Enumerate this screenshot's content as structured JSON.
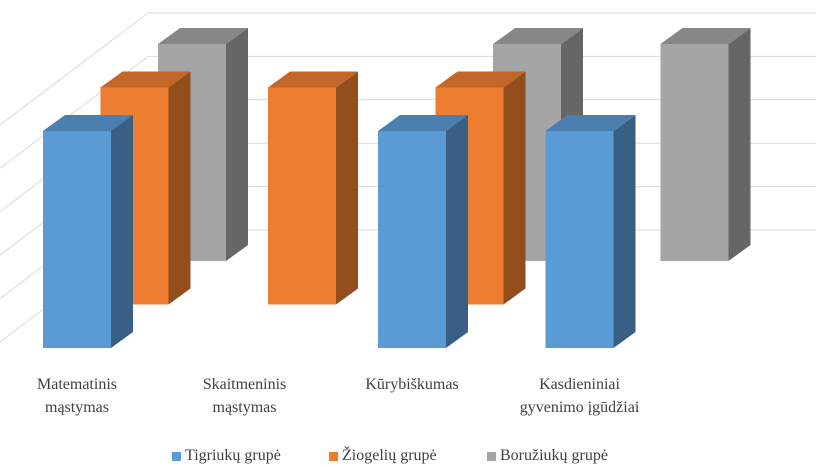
{
  "chart_data": {
    "type": "bar3d",
    "categories": [
      "Matematinis mąstymas",
      "Skaitmeninis mąstymas",
      "Kūrybiškumas",
      "Kasdieniniai gyvenimo įgūdžiai"
    ],
    "series": [
      {
        "name": "Tigriukų grupė",
        "color": "#5b9bd5",
        "values": [
          5,
          0,
          5,
          5
        ]
      },
      {
        "name": "Žiogelių grupė",
        "color": "#ed7d31",
        "values": [
          5,
          5,
          5,
          0
        ]
      },
      {
        "name": "Boružiukų grupė",
        "color": "#a5a5a5",
        "values": [
          5,
          0,
          5,
          5
        ]
      }
    ],
    "ylim": [
      0,
      5
    ],
    "yticks": [
      0,
      1,
      2,
      3,
      4,
      5
    ],
    "grid": true,
    "legend": "bottom"
  }
}
